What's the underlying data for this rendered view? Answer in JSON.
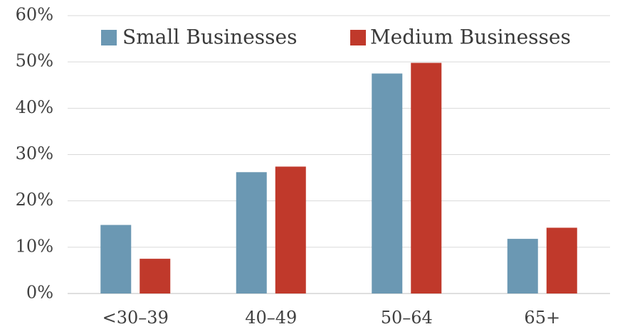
{
  "chart_data": {
    "type": "bar",
    "categories": [
      "<30–39",
      "40–49",
      "50–64",
      "65+"
    ],
    "series": [
      {
        "name": "Small Businesses",
        "color": "#6b98b3",
        "values": [
          14.8,
          26.2,
          47.5,
          11.8
        ]
      },
      {
        "name": "Medium Businesses",
        "color": "#c0392b",
        "values": [
          7.5,
          27.4,
          49.8,
          14.2
        ]
      }
    ],
    "y_ticks": [
      "0%",
      "10%",
      "20%",
      "30%",
      "40%",
      "50%",
      "60%"
    ],
    "ylim": [
      0,
      60
    ],
    "y_unit": "%",
    "grid": true,
    "legend_position": "top"
  }
}
